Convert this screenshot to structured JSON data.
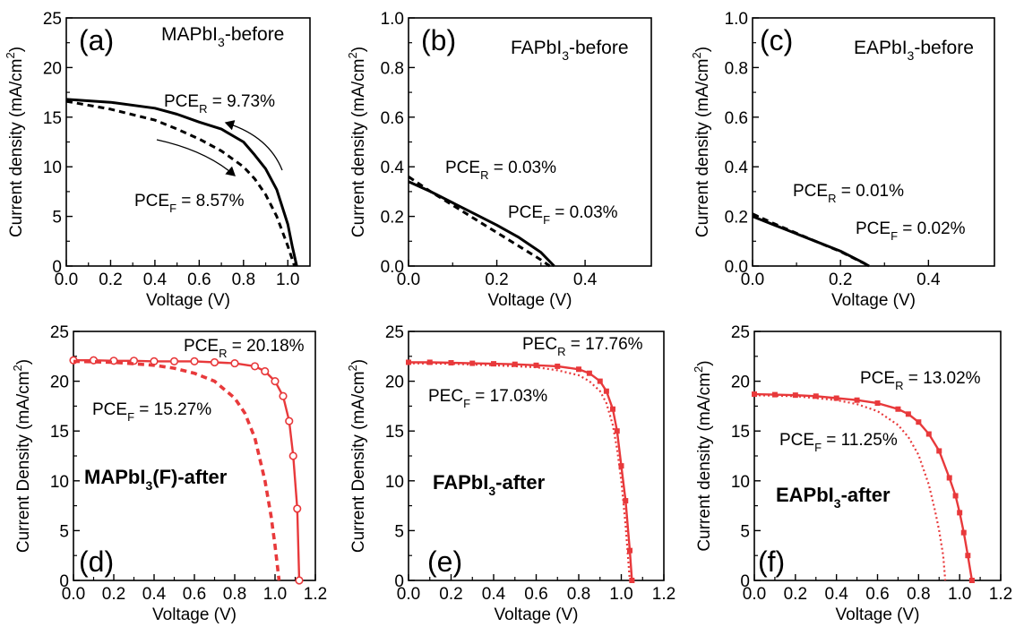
{
  "chart_data": [
    {
      "id": "a",
      "type": "line",
      "color": "#000000",
      "panel_label": "(a)",
      "sample": {
        "text": "MAPbI",
        "sub": "3",
        "suffix": "-before"
      },
      "xlabel": "Voltage (V)",
      "ylabel": {
        "text": "Current density (mA/cm",
        "sup": "2",
        "tail": ")"
      },
      "xlim": [
        0,
        1.1
      ],
      "ylim": [
        0,
        25
      ],
      "xticks": [
        0.0,
        0.2,
        0.4,
        0.6,
        0.8,
        1.0
      ],
      "xtick_labels": [
        "0.0",
        "0.2",
        "0.4",
        "0.6",
        "0.8",
        "1.0"
      ],
      "yticks": [
        0,
        5,
        10,
        15,
        20,
        25
      ],
      "ytick_labels": [
        "0",
        "5",
        "10",
        "15",
        "20",
        "25"
      ],
      "series": [
        {
          "style": "solid",
          "x": [
            0,
            0.2,
            0.4,
            0.5,
            0.6,
            0.7,
            0.8,
            0.85,
            0.9,
            0.95,
            1.0,
            1.02,
            1.04
          ],
          "y": [
            16.8,
            16.5,
            15.9,
            15.3,
            14.5,
            13.8,
            12.5,
            11.2,
            9.8,
            7.7,
            4.2,
            2.0,
            0
          ]
        },
        {
          "style": "dashed",
          "x": [
            0,
            0.2,
            0.4,
            0.5,
            0.6,
            0.7,
            0.8,
            0.85,
            0.9,
            0.95,
            1.0,
            1.03
          ],
          "y": [
            16.6,
            15.8,
            14.7,
            13.8,
            12.8,
            11.6,
            10.0,
            8.8,
            7.2,
            5.0,
            2.0,
            0
          ]
        }
      ],
      "annotations": [
        {
          "base": "PCE",
          "sub": "R",
          "rest": " = 9.73%"
        },
        {
          "base": "PCE",
          "sub": "F",
          "rest": " = 8.57%"
        }
      ]
    },
    {
      "id": "b",
      "type": "line",
      "color": "#000000",
      "panel_label": "(b)",
      "sample": {
        "text": "FAPbI",
        "sub": "3",
        "suffix": "-before"
      },
      "xlabel": "Voltage (V)",
      "ylabel": {
        "text": "Current density (mA/cm",
        "sup": "2",
        "tail": ")"
      },
      "xlim": [
        0,
        0.55
      ],
      "ylim": [
        0,
        1.0
      ],
      "xticks": [
        0.0,
        0.2,
        0.4
      ],
      "xtick_labels": [
        "0.0",
        "0.2",
        "0.4"
      ],
      "yticks": [
        0.0,
        0.2,
        0.4,
        0.6,
        0.8,
        1.0
      ],
      "ytick_labels": [
        "0.0",
        "0.2",
        "0.4",
        "0.6",
        "0.8",
        "1.0"
      ],
      "series": [
        {
          "style": "solid",
          "x": [
            0,
            0.05,
            0.1,
            0.15,
            0.2,
            0.25,
            0.3,
            0.33
          ],
          "y": [
            0.34,
            0.3,
            0.255,
            0.21,
            0.165,
            0.115,
            0.055,
            0
          ]
        },
        {
          "style": "dashed",
          "x": [
            0,
            0.05,
            0.1,
            0.15,
            0.2,
            0.25,
            0.3,
            0.32
          ],
          "y": [
            0.36,
            0.3,
            0.245,
            0.19,
            0.135,
            0.08,
            0.025,
            0
          ]
        }
      ],
      "annotations": [
        {
          "base": "PCE",
          "sub": "R",
          "rest": " = 0.03%"
        },
        {
          "base": "PCE",
          "sub": "F",
          "rest": " = 0.03%"
        }
      ]
    },
    {
      "id": "c",
      "type": "line",
      "color": "#000000",
      "panel_label": "(c)",
      "sample": {
        "text": "EAPbI",
        "sub": "3",
        "suffix": "-before"
      },
      "xlabel": "Voltage (V)",
      "ylabel": {
        "text": "Current density (mA/cm",
        "sup": "2",
        "tail": ")"
      },
      "xlim": [
        0,
        0.55
      ],
      "ylim": [
        0,
        1.0
      ],
      "xticks": [
        0.0,
        0.2,
        0.4
      ],
      "xtick_labels": [
        "0.0",
        "0.2",
        "0.4"
      ],
      "yticks": [
        0.0,
        0.2,
        0.4,
        0.6,
        0.8,
        1.0
      ],
      "ytick_labels": [
        "0.0",
        "0.2",
        "0.4",
        "0.6",
        "0.8",
        "1.0"
      ],
      "series": [
        {
          "style": "solid",
          "x": [
            0,
            0.05,
            0.1,
            0.15,
            0.2,
            0.25,
            0.265
          ],
          "y": [
            0.2,
            0.165,
            0.13,
            0.095,
            0.06,
            0.015,
            0
          ]
        },
        {
          "style": "dashed",
          "x": [
            0,
            0.05,
            0.1,
            0.15,
            0.2,
            0.25,
            0.265
          ],
          "y": [
            0.21,
            0.17,
            0.132,
            0.095,
            0.058,
            0.014,
            0
          ]
        }
      ],
      "annotations": [
        {
          "base": "PCE",
          "sub": "R",
          "rest": " = 0.01%"
        },
        {
          "base": "PCE",
          "sub": "F",
          "rest": " = 0.02%"
        }
      ]
    },
    {
      "id": "d",
      "type": "line",
      "color": "#e8393b",
      "panel_label": "(d)",
      "sample": {
        "text": "MAPbI",
        "sub": "3",
        "suffix": "(F)-after"
      },
      "xlabel": "Voltage (V)",
      "ylabel": {
        "text": "Current Density (mA/cm",
        "sup": "2",
        "tail": ")"
      },
      "xlim": [
        0,
        1.2
      ],
      "ylim": [
        0,
        25
      ],
      "xticks": [
        0.0,
        0.2,
        0.4,
        0.6,
        0.8,
        1.0,
        1.2
      ],
      "xtick_labels": [
        "0.0",
        "0.2",
        "0.4",
        "0.6",
        "0.8",
        "1.0",
        "1.2"
      ],
      "yticks": [
        0,
        5,
        10,
        15,
        20,
        25
      ],
      "ytick_labels": [
        "0",
        "5",
        "10",
        "15",
        "20",
        "25"
      ],
      "series": [
        {
          "style": "solid-markers",
          "x": [
            0,
            0.1,
            0.2,
            0.3,
            0.4,
            0.5,
            0.6,
            0.7,
            0.8,
            0.9,
            0.95,
            1.0,
            1.04,
            1.07,
            1.09,
            1.11,
            1.12
          ],
          "y": [
            22.1,
            22.1,
            22.05,
            22.05,
            22.0,
            22.0,
            22.0,
            21.9,
            21.8,
            21.5,
            21.0,
            20.0,
            18.5,
            16.0,
            12.5,
            7.2,
            0
          ]
        },
        {
          "style": "dashed",
          "x": [
            0,
            0.2,
            0.4,
            0.5,
            0.6,
            0.7,
            0.8,
            0.85,
            0.9,
            0.95,
            0.98,
            1.0,
            1.02
          ],
          "y": [
            22.0,
            21.9,
            21.6,
            21.3,
            20.8,
            20.0,
            18.3,
            16.8,
            14.3,
            10.0,
            6.5,
            3.5,
            0
          ]
        }
      ],
      "annotations": [
        {
          "base": "PCE",
          "sub": "R",
          "rest": " = 20.18%"
        },
        {
          "base": "PCE",
          "sub": "F",
          "rest": " = 15.27%"
        }
      ]
    },
    {
      "id": "e",
      "type": "line",
      "color": "#e8393b",
      "panel_label": "(e)",
      "sample": {
        "text": "FAPbI",
        "sub": "3",
        "suffix": "-after"
      },
      "xlabel": "Voltage (V)",
      "ylabel": {
        "text": "Current Density (mA/cm",
        "sup": "2",
        "tail": ")"
      },
      "xlim": [
        0,
        1.2
      ],
      "ylim": [
        0,
        25
      ],
      "xticks": [
        0.0,
        0.2,
        0.4,
        0.6,
        0.8,
        1.0,
        1.2
      ],
      "xtick_labels": [
        "0.0",
        "0.2",
        "0.4",
        "0.6",
        "0.8",
        "1.0",
        "1.2"
      ],
      "yticks": [
        0,
        5,
        10,
        15,
        20,
        25
      ],
      "ytick_labels": [
        "0",
        "5",
        "10",
        "15",
        "20",
        "25"
      ],
      "series": [
        {
          "style": "solid-markers",
          "x": [
            0,
            0.1,
            0.2,
            0.3,
            0.4,
            0.5,
            0.6,
            0.7,
            0.8,
            0.85,
            0.9,
            0.93,
            0.96,
            0.98,
            1.0,
            1.02,
            1.04,
            1.05
          ],
          "y": [
            21.9,
            21.9,
            21.85,
            21.8,
            21.75,
            21.7,
            21.6,
            21.5,
            21.2,
            20.8,
            20.0,
            19.0,
            17.2,
            15.0,
            11.5,
            8.0,
            3.0,
            0
          ]
        },
        {
          "style": "dotted",
          "x": [
            0,
            0.2,
            0.4,
            0.6,
            0.7,
            0.8,
            0.85,
            0.9,
            0.93,
            0.96,
            0.98,
            1.0,
            1.02,
            1.04
          ],
          "y": [
            21.8,
            21.75,
            21.6,
            21.4,
            21.1,
            20.6,
            20.0,
            19.0,
            17.8,
            15.6,
            13.2,
            10.0,
            5.5,
            0
          ]
        }
      ],
      "annotations": [
        {
          "base": "PEC",
          "sub": "R",
          "rest": " = 17.76%"
        },
        {
          "base": "PEC",
          "sub": "F",
          "rest": " = 17.03%"
        }
      ]
    },
    {
      "id": "f",
      "type": "line",
      "color": "#e8393b",
      "panel_label": "(f)",
      "sample": {
        "text": "EAPbI",
        "sub": "3",
        "suffix": "-after"
      },
      "xlabel": "Voltage (V)",
      "ylabel": {
        "text": "Current density (mA/cm",
        "sup": "2",
        "tail": ")"
      },
      "xlim": [
        0,
        1.2
      ],
      "ylim": [
        0,
        25
      ],
      "xticks": [
        0.0,
        0.2,
        0.4,
        0.6,
        0.8,
        1.0,
        1.2
      ],
      "xtick_labels": [
        "0.0",
        "0.2",
        "0.4",
        "0.6",
        "0.8",
        "1.0",
        "1.2"
      ],
      "yticks": [
        0,
        5,
        10,
        15,
        20,
        25
      ],
      "ytick_labels": [
        "0",
        "5",
        "10",
        "15",
        "20",
        "25"
      ],
      "series": [
        {
          "style": "solid-markers",
          "x": [
            0,
            0.1,
            0.2,
            0.3,
            0.4,
            0.5,
            0.6,
            0.7,
            0.75,
            0.8,
            0.85,
            0.9,
            0.95,
            0.98,
            1.0,
            1.02,
            1.04,
            1.06
          ],
          "y": [
            18.7,
            18.65,
            18.6,
            18.5,
            18.3,
            18.1,
            17.8,
            17.2,
            16.7,
            15.9,
            14.7,
            13.0,
            10.3,
            8.5,
            6.8,
            4.8,
            2.5,
            0
          ]
        },
        {
          "style": "dotted",
          "x": [
            0,
            0.2,
            0.4,
            0.5,
            0.6,
            0.7,
            0.75,
            0.8,
            0.85,
            0.88,
            0.9,
            0.92,
            0.93
          ],
          "y": [
            18.6,
            18.5,
            18.1,
            17.7,
            17.0,
            15.6,
            14.4,
            12.6,
            9.6,
            7.0,
            5.0,
            2.5,
            0
          ]
        }
      ],
      "annotations": [
        {
          "base": "PCE",
          "sub": "R",
          "rest": " = 13.02%"
        },
        {
          "base": "PCE",
          "sub": "F",
          "rest": " = 11.25%"
        }
      ]
    }
  ]
}
